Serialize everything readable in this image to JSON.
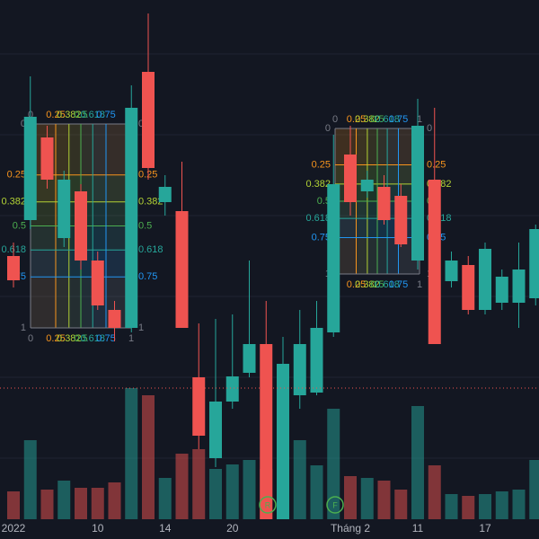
{
  "chart_data": {
    "type": "candlestick",
    "categories": [
      "2022",
      null,
      null,
      null,
      null,
      "10",
      null,
      null,
      null,
      "14",
      null,
      null,
      null,
      "20",
      null,
      null,
      null,
      null,
      null,
      null,
      "Tháng 2",
      null,
      null,
      null,
      "11",
      null,
      null,
      null,
      "17",
      null,
      null,
      null
    ],
    "open": [
      315,
      355,
      447,
      335,
      387,
      310,
      255,
      235,
      520,
      375,
      365,
      180,
      90,
      153,
      185,
      217,
      0,
      160,
      163,
      230,
      428,
      387,
      392,
      382,
      310,
      400,
      287,
      305,
      255,
      263,
      263,
      268
    ],
    "high": [
      330,
      515,
      460,
      410,
      395,
      320,
      265,
      505,
      585,
      405,
      420,
      240,
      245,
      250,
      310,
      265,
      225,
      255,
      265,
      450,
      460,
      410,
      405,
      395,
      490,
      480,
      320,
      315,
      330,
      300,
      330,
      350
    ],
    "low": [
      280,
      345,
      390,
      325,
      300,
      255,
      220,
      230,
      400,
      360,
      235,
      100,
      80,
      145,
      180,
      0,
      0,
      145,
      160,
      225,
      360,
      380,
      350,
      325,
      300,
      217,
      280,
      250,
      250,
      255,
      235,
      260
    ],
    "close": [
      288,
      470,
      400,
      400,
      310,
      260,
      235,
      480,
      413,
      392,
      235,
      115,
      153,
      181,
      217,
      0,
      195,
      217,
      235,
      395,
      375,
      400,
      355,
      328,
      460,
      217,
      310,
      255,
      323,
      292,
      300,
      345
    ],
    "volume": [
      31,
      88,
      33,
      43,
      35,
      35,
      41,
      146,
      138,
      46,
      73,
      78,
      56,
      61,
      66,
      56,
      73,
      88,
      60,
      123,
      48,
      46,
      43,
      33,
      126,
      60,
      28,
      26,
      28,
      31,
      33,
      66
    ],
    "ylim": [
      0,
      600
    ],
    "volume_lim": [
      0,
      578
    ],
    "up_color": "#26a69a",
    "down_color": "#ef5350",
    "fib_levels": [
      0,
      0.25,
      0.382,
      0.5,
      0.618,
      0.75,
      1
    ],
    "fib_colors": [
      "#787b86",
      "#f7941d",
      "#b2d235",
      "#4caf50",
      "#26a69a",
      "#2196f3",
      "#787b86"
    ],
    "markers": [
      "R",
      "F"
    ]
  }
}
